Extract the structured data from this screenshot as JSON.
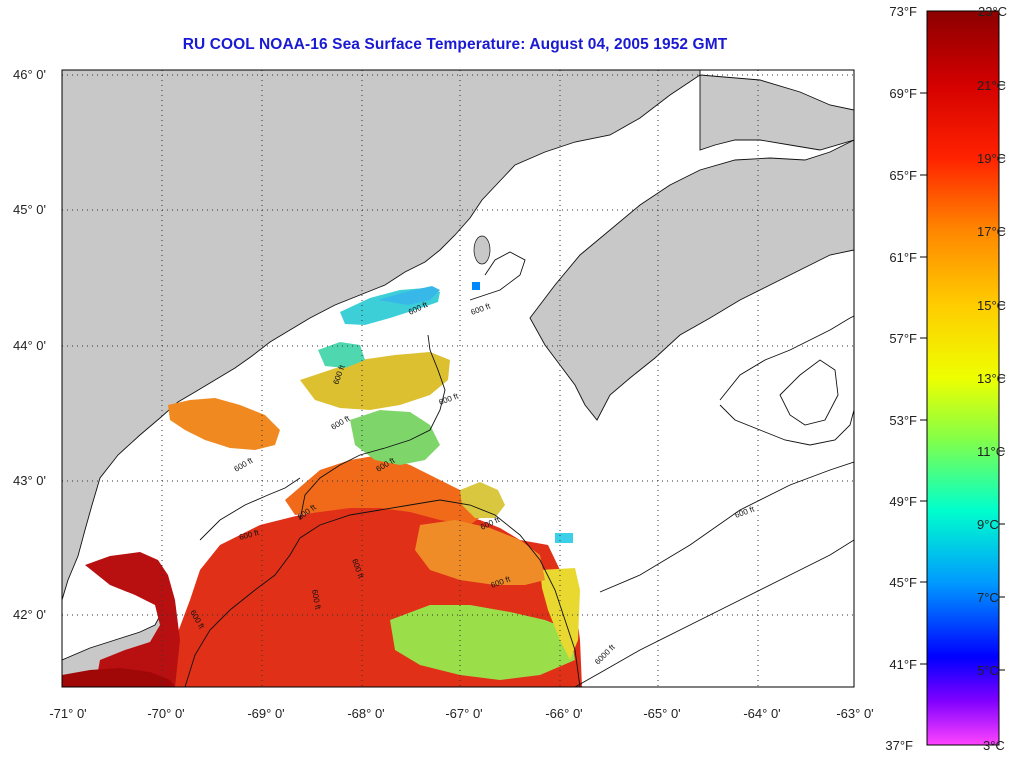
{
  "title": "RU COOL  NOAA-16  Sea Surface Temperature:  August 04, 2005 1952 GMT",
  "latitude_labels": [
    "46° 0'",
    "45° 0'",
    "44° 0'",
    "43° 0'",
    "42° 0'"
  ],
  "longitude_labels": [
    "-71° 0'",
    "-70° 0'",
    "-69° 0'",
    "-68° 0'",
    "-67° 0'",
    "-66° 0'",
    "-65° 0'",
    "-64° 0'",
    "-63° 0'"
  ],
  "fahrenheit_labels": [
    "73°F",
    "69°F",
    "65°F",
    "61°F",
    "57°F",
    "53°F",
    "49°F",
    "45°F",
    "41°F",
    "37°F"
  ],
  "celsius_labels": [
    "23°C",
    "21°C",
    "19°C",
    "17°C",
    "15°C",
    "13°C",
    "11°C",
    "9°C",
    "7°C",
    "5°C",
    "3°C"
  ],
  "contour_labels": [
    "600 ft",
    "600 ft",
    "600 ft",
    "600 ft",
    "600 ft",
    "600 ft",
    "600 ft",
    "600 ft",
    "600 ft",
    "600 ft",
    "600 ft",
    "600 ft",
    "600 ft",
    "600 ft",
    "600 ft",
    "6000 ft"
  ],
  "colors": {
    "land": "#c8c8c8",
    "cloud_mask": "#ffffff",
    "title": "#1a1ad2",
    "colorbar_stops": [
      "#8b0000",
      "#e60000",
      "#ff6600",
      "#ffb300",
      "#ffff00",
      "#66ff66",
      "#00ffcc",
      "#0099ff",
      "#0000ff",
      "#8000ff",
      "#ff44ff"
    ]
  }
}
